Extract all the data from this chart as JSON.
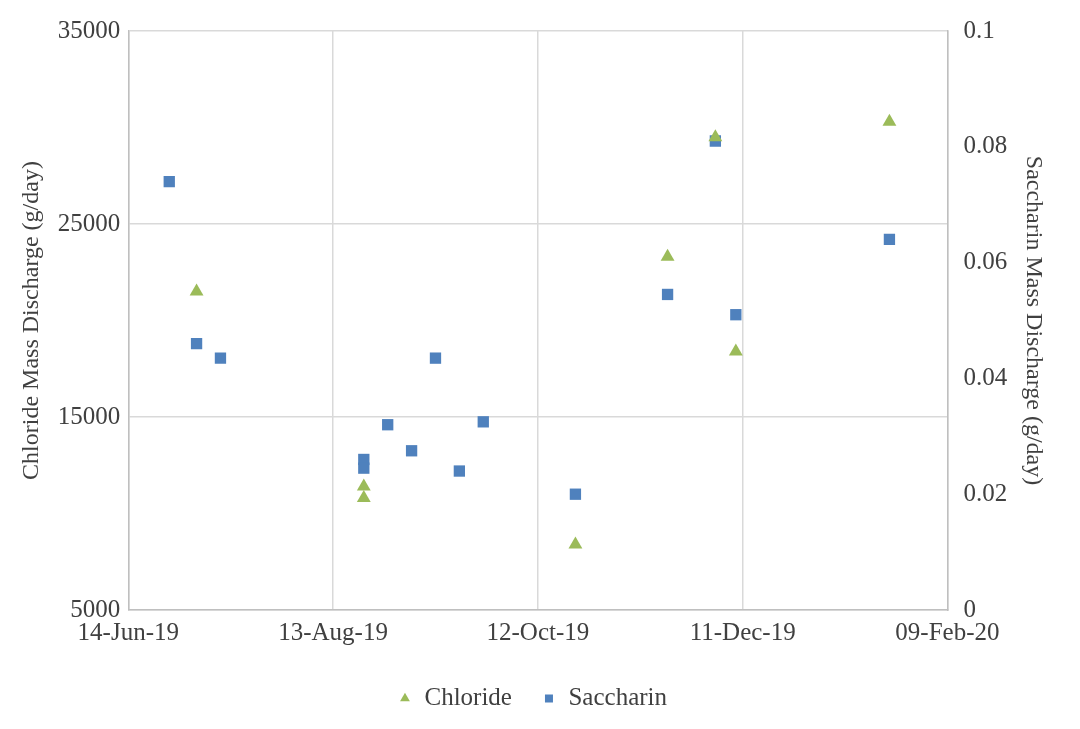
{
  "chart_data": {
    "type": "scatter",
    "xlabel": null,
    "ylabel": "Chloride Mass Discharge (g/day)",
    "y2label": "Saccharin Mass Discharge (g/day)",
    "xlim": [
      "2019-06-14",
      "2020-02-09"
    ],
    "xticks": [
      {
        "value": "2019-06-14",
        "label": "14-Jun-19"
      },
      {
        "value": "2019-08-13",
        "label": "13-Aug-19"
      },
      {
        "value": "2019-10-12",
        "label": "12-Oct-19"
      },
      {
        "value": "2019-12-11",
        "label": "11-Dec-19"
      },
      {
        "value": "2020-02-09",
        "label": "09-Feb-20"
      }
    ],
    "ylim": [
      5000,
      35000
    ],
    "yticks": [
      5000,
      15000,
      25000,
      35000
    ],
    "y2lim": [
      0,
      0.1
    ],
    "y2ticks": [
      0,
      0.02,
      0.04,
      0.06,
      0.08,
      0.1
    ],
    "grid": true,
    "legend": "bottom",
    "series": [
      {
        "name": "Chloride",
        "color": "#9bbb59",
        "marker": "triangle",
        "x": [
          "2019-07-04",
          "2019-08-22",
          "2019-08-22",
          "2019-10-23",
          "2019-11-19",
          "2019-12-03",
          "2019-12-09",
          "2020-01-23"
        ],
        "values": [
          21500,
          11400,
          10800,
          8400,
          23300,
          29500,
          18400,
          30300
        ]
      },
      {
        "name": "Saccharin",
        "color": "#4f81bd",
        "marker": "square",
        "axis": "y2",
        "x": [
          "2019-06-26",
          "2019-07-04",
          "2019-07-11",
          "2019-08-22",
          "2019-08-22",
          "2019-08-29",
          "2019-09-05",
          "2019-09-12",
          "2019-09-19",
          "2019-09-26",
          "2019-10-23",
          "2019-11-19",
          "2019-12-03",
          "2019-12-09",
          "2020-01-23"
        ],
        "values": [
          0.074,
          0.046,
          0.0435,
          0.026,
          0.0245,
          0.032,
          0.0275,
          0.0435,
          0.024,
          0.0325,
          0.02,
          0.0545,
          0.081,
          0.051,
          0.064
        ]
      }
    ]
  }
}
